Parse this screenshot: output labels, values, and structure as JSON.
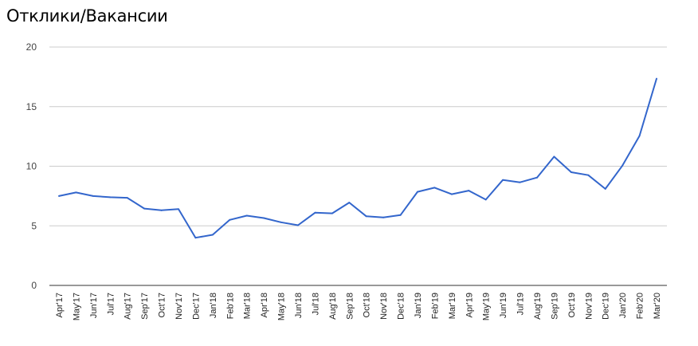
{
  "chart_data": {
    "type": "line",
    "title": "Отклики/Вакансии",
    "xlabel": "",
    "ylabel": "",
    "ylim": [
      0,
      20
    ],
    "yticks": [
      0,
      5,
      10,
      15,
      20
    ],
    "grid": true,
    "legend": "none",
    "categories": [
      "Apr'17",
      "May'17",
      "Jun'17",
      "Jul'17",
      "Aug'17",
      "Sep'17",
      "Oct'17",
      "Nov'17",
      "Dec'17",
      "Jan'18",
      "Feb'18",
      "Mar'18",
      "Apr'18",
      "May'18",
      "Jun'18",
      "Jul'18",
      "Aug'18",
      "Sep'18",
      "Oct'18",
      "Nov'18",
      "Dec'18",
      "Jan'19",
      "Feb'19",
      "Mar'19",
      "Apr'19",
      "May'19",
      "Jun'19",
      "Jul'19",
      "Aug'19",
      "Sep'19",
      "Oct'19",
      "Nov'19",
      "Dec'19",
      "Jan'20",
      "Feb'20",
      "Mar'20"
    ],
    "series": [
      {
        "color": "#3366cc",
        "values": [
          7.5,
          7.8,
          7.5,
          7.4,
          7.35,
          6.45,
          6.3,
          6.4,
          4.0,
          4.25,
          5.5,
          5.85,
          5.65,
          5.3,
          5.05,
          6.1,
          6.05,
          6.95,
          5.8,
          5.7,
          5.9,
          7.85,
          8.2,
          7.65,
          7.95,
          7.2,
          8.85,
          8.65,
          9.05,
          10.8,
          9.5,
          9.25,
          8.1,
          10.05,
          12.55,
          17.35
        ]
      }
    ]
  }
}
